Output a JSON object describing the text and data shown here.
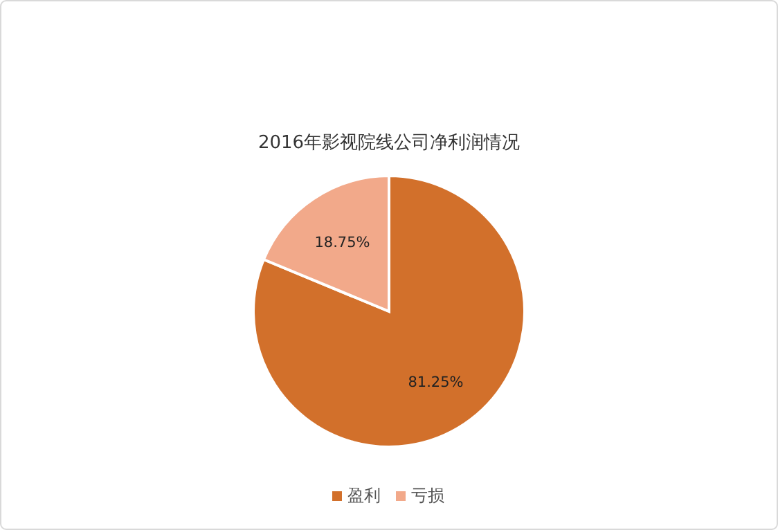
{
  "chart_data": {
    "type": "pie",
    "title": "2016年影视院线公司净利润情况",
    "categories": [
      "盈利",
      "亏损"
    ],
    "values": [
      81.25,
      18.75
    ],
    "colors": [
      "#d2702b",
      "#f2a98a"
    ],
    "value_labels": [
      "81.25%",
      "18.75%"
    ],
    "legend": "bottom"
  }
}
